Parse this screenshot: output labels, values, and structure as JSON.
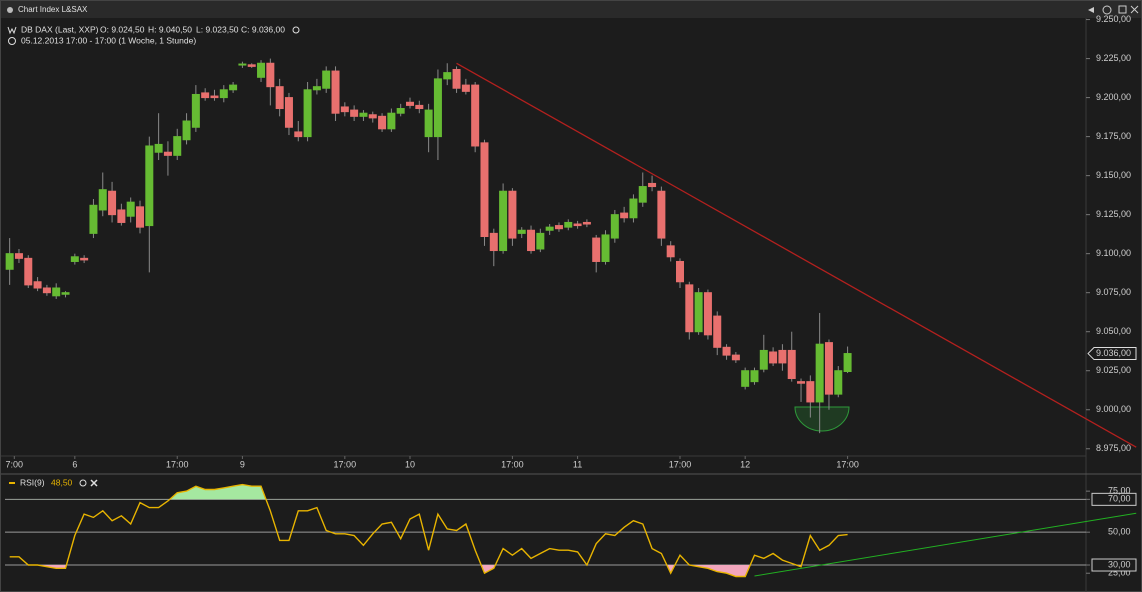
{
  "window": {
    "title": "Chart Index L&SAX"
  },
  "chart_data": [
    {
      "type": "candlestick",
      "instrument": "DB DAX (Last, XXP)",
      "ohlc_labels": [
        "O: 9.024,50",
        "H: 9.040,50",
        "L: 9.023,50",
        "C: 9.036,00"
      ],
      "subtitle": "05.12.2013 17:00 - 17:00 (1 Woche, 1 Stunde)",
      "up_color": "#66bb33",
      "down_color": "#e8706e",
      "x": [
        0,
        1,
        2,
        3,
        4,
        5,
        6,
        7,
        8,
        9,
        10,
        11,
        12,
        13,
        14,
        15,
        16,
        17,
        18,
        19,
        20,
        21,
        22,
        23,
        24,
        25,
        26,
        27,
        28,
        29,
        30,
        31,
        32,
        33,
        34,
        35,
        36,
        37,
        38,
        39,
        40,
        41,
        42,
        43,
        44,
        45,
        46,
        47,
        48,
        49,
        50,
        51,
        52,
        53,
        54,
        55,
        56,
        57,
        58,
        59,
        60,
        61,
        62,
        63,
        64,
        65,
        66,
        67,
        68,
        69,
        70,
        71,
        72,
        73,
        74,
        75,
        76,
        77,
        78,
        79,
        80,
        81,
        82,
        83,
        84,
        85,
        86,
        87,
        88,
        89,
        90
      ],
      "open": [
        9090,
        9100,
        9097,
        9082,
        9078,
        9073,
        9074,
        9095,
        9097,
        9113,
        9128,
        9140,
        9128,
        9124,
        9130,
        9118,
        9165,
        9165,
        9163,
        9173,
        9181,
        9203,
        9201,
        9200,
        9205,
        9221,
        9221,
        9213,
        9222,
        9207,
        9200,
        9178,
        9175,
        9205,
        9206,
        9217,
        9194,
        9192,
        9188,
        9189,
        9188,
        9180,
        9190,
        9197,
        9195,
        9175,
        9175,
        9212,
        9218,
        9208,
        9208,
        9171,
        9113,
        9102,
        9140,
        9113,
        9115,
        9103,
        9115,
        9118,
        9117,
        9119,
        9120,
        9110,
        9095,
        9110,
        9126,
        9123,
        9133,
        9145,
        9140,
        9105,
        9095,
        9080,
        9050,
        9075,
        9060,
        9040,
        9035,
        9015,
        9018,
        9026,
        9037,
        9038,
        9038,
        9018,
        9018,
        9005,
        9043,
        9010,
        9024.5
      ],
      "high": [
        9110,
        9103,
        9099,
        9085,
        9080,
        9081,
        9076,
        9100,
        9099,
        9135,
        9152,
        9146,
        9132,
        9136,
        9134,
        9175,
        9190,
        9172,
        9180,
        9190,
        9208,
        9206,
        9205,
        9208,
        9210,
        9223,
        9222,
        9224,
        9225,
        9212,
        9203,
        9185,
        9210,
        9212,
        9220,
        9220,
        9197,
        9195,
        9192,
        9191,
        9190,
        9193,
        9196,
        9200,
        9198,
        9196,
        9218,
        9222,
        9220,
        9212,
        9210,
        9173,
        9116,
        9145,
        9142,
        9117,
        9118,
        9116,
        9119,
        9120,
        9122,
        9121,
        9122,
        9112,
        9115,
        9128,
        9130,
        9138,
        9152,
        9150,
        9143,
        9108,
        9097,
        9082,
        9078,
        9077,
        9063,
        9042,
        9037,
        9027,
        9027,
        9048,
        9040,
        9042,
        9050,
        9020,
        9022,
        9062,
        9045,
        9028,
        9040.5
      ],
      "low": [
        9080,
        9094,
        9078,
        9076,
        9073,
        9071,
        9072,
        9093,
        9094,
        9110,
        9124,
        9120,
        9118,
        9120,
        9113,
        9088,
        9160,
        9150,
        9160,
        9170,
        9178,
        9198,
        9198,
        9197,
        9203,
        9219,
        9219,
        9210,
        9195,
        9188,
        9176,
        9172,
        9172,
        9202,
        9203,
        9185,
        9188,
        9185,
        9185,
        9184,
        9178,
        9178,
        9188,
        9193,
        9190,
        9165,
        9160,
        9208,
        9203,
        9202,
        9165,
        9105,
        9092,
        9100,
        9105,
        9110,
        9100,
        9101,
        9112,
        9114,
        9115,
        9116,
        9117,
        9088,
        9093,
        9107,
        9120,
        9120,
        9130,
        9140,
        9105,
        9095,
        9078,
        9045,
        9048,
        9045,
        9035,
        9032,
        9030,
        9013,
        9016,
        9024,
        9028,
        9025,
        9018,
        9005,
        8995,
        8985,
        9000,
        9008,
        9023.5
      ],
      "close": [
        9100,
        9097,
        9080,
        9078,
        9075,
        9078,
        9075,
        9098,
        9096,
        9131,
        9141,
        9125,
        9120,
        9133,
        9117,
        9169,
        9170,
        9163,
        9175,
        9185,
        9202,
        9200,
        9200,
        9205,
        9208,
        9221.5,
        9220,
        9222,
        9207,
        9193,
        9181,
        9175,
        9205,
        9207,
        9217,
        9190,
        9191,
        9188,
        9190,
        9187,
        9180,
        9190,
        9193,
        9195,
        9193,
        9192,
        9212,
        9216,
        9206,
        9204,
        9169,
        9111,
        9102,
        9140,
        9110,
        9115,
        9102,
        9113,
        9117,
        9116,
        9120,
        9118,
        9119,
        9095,
        9112,
        9125,
        9123,
        9135,
        9143,
        9143,
        9110,
        9098,
        9082,
        9050,
        9075,
        9048,
        9040,
        9035,
        9032,
        9025,
        9025,
        9038,
        9030,
        9030,
        9020,
        9017,
        9005,
        9042,
        9010,
        9025,
        9036
      ],
      "xlim": [
        -0.5,
        115.5
      ],
      "xticks": [
        {
          "value": 0.5,
          "label": "7:00"
        },
        {
          "value": 7,
          "label": "6"
        },
        {
          "value": 18,
          "label": "17:00"
        },
        {
          "value": 25,
          "label": "9"
        },
        {
          "value": 36,
          "label": "17:00"
        },
        {
          "value": 43,
          "label": "10"
        },
        {
          "value": 54,
          "label": "17:00"
        },
        {
          "value": 61,
          "label": "11"
        },
        {
          "value": 72,
          "label": "17:00"
        },
        {
          "value": 79,
          "label": "12"
        },
        {
          "value": 90,
          "label": "17:00"
        }
      ],
      "ylim": [
        8971,
        9251
      ],
      "yticks": [
        {
          "value": 8975,
          "label": "8.975,00"
        },
        {
          "value": 9000,
          "label": "9.000,00"
        },
        {
          "value": 9025,
          "label": "9.025,00"
        },
        {
          "value": 9050,
          "label": "9.050,00"
        },
        {
          "value": 9075,
          "label": "9.075,00"
        },
        {
          "value": 9100,
          "label": "9.100,00"
        },
        {
          "value": 9125,
          "label": "9.125,00"
        },
        {
          "value": 9150,
          "label": "9.150,00"
        },
        {
          "value": 9175,
          "label": "9.175,00"
        },
        {
          "value": 9200,
          "label": "9.200,00"
        },
        {
          "value": 9225,
          "label": "9.225,00"
        },
        {
          "value": 9250,
          "label": "9.250,00"
        }
      ],
      "last_price": {
        "value": 9036,
        "label": "9.036,00"
      },
      "trendline": {
        "x": [
          48,
          121
        ],
        "y": [
          9222,
          8976
        ],
        "color": "#b3201e"
      }
    },
    {
      "type": "line",
      "name": "RSI(9)",
      "value_label": "48,50",
      "color": "#e8b400",
      "overbought_color": "#a5e8a0",
      "oversold_color": "#f2a6bd",
      "x": [
        0,
        1,
        2,
        3,
        4,
        5,
        6,
        7,
        8,
        9,
        10,
        11,
        12,
        13,
        14,
        15,
        16,
        17,
        18,
        19,
        20,
        21,
        22,
        23,
        24,
        25,
        26,
        27,
        28,
        29,
        30,
        31,
        32,
        33,
        34,
        35,
        36,
        37,
        38,
        39,
        40,
        41,
        42,
        43,
        44,
        45,
        46,
        47,
        48,
        49,
        50,
        51,
        52,
        53,
        54,
        55,
        56,
        57,
        58,
        59,
        60,
        61,
        62,
        63,
        64,
        65,
        66,
        67,
        68,
        69,
        70,
        71,
        72,
        73,
        74,
        75,
        76,
        77,
        78,
        79,
        80,
        81,
        82,
        83,
        84,
        85,
        86,
        87,
        88,
        89,
        90
      ],
      "values": [
        35,
        35,
        30,
        30,
        29,
        28,
        28,
        48,
        61,
        59,
        63,
        57,
        60,
        55,
        68,
        65,
        65,
        69,
        74,
        75,
        78,
        76,
        76,
        77,
        78,
        79,
        78,
        78,
        63,
        45,
        45,
        63,
        63,
        65,
        51,
        49,
        49,
        48,
        42,
        49,
        55,
        56,
        46,
        58,
        61,
        39,
        61,
        52,
        51,
        55,
        39,
        25,
        28,
        40,
        36,
        40,
        34,
        37,
        40,
        39,
        39,
        38,
        30,
        43,
        49,
        48,
        53,
        57,
        55,
        40,
        37,
        25,
        36,
        30,
        29,
        28,
        26,
        25,
        23,
        23,
        36,
        34,
        37,
        33,
        31,
        29,
        48,
        39,
        42,
        48,
        48.5
      ],
      "xlim": [
        -0.5,
        115.5
      ],
      "ylim": [
        16,
        83
      ],
      "yticks": [
        {
          "value": 25,
          "label": "25,00"
        },
        {
          "value": 30,
          "label": "30,00"
        },
        {
          "value": 50,
          "label": "50,00"
        },
        {
          "value": 70,
          "label": "70,00"
        },
        {
          "value": 75,
          "label": "75,00"
        }
      ],
      "levels": [
        30,
        50,
        70
      ],
      "trendline": {
        "x": [
          80,
          121
        ],
        "y": [
          23.3,
          61.5
        ],
        "color": "#22b022"
      }
    }
  ]
}
